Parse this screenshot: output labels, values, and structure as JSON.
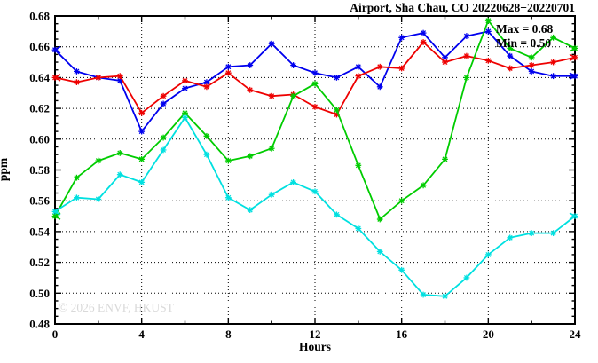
{
  "title": "Airport, Sha Chau, CO 20220628−20220701",
  "watermark": "© 2026 ENVF, HKUST",
  "chart_data": {
    "type": "line",
    "title": "Airport, Sha Chau, CO 20220628−20220701",
    "xlabel": "Hours",
    "ylabel": "ppm",
    "xlim": [
      0,
      24
    ],
    "ylim": [
      0.48,
      0.68
    ],
    "x_major_tick_step": 4,
    "x_minor_tick_step": 2,
    "y_major_tick_step": 0.02,
    "y_minor_tick_step": 0.005,
    "grid": true,
    "legend_position": "none",
    "annotations": [
      "Max = 0.68",
      "Min = 0.50"
    ],
    "x": [
      0,
      1,
      2,
      3,
      4,
      5,
      6,
      7,
      8,
      9,
      10,
      11,
      12,
      13,
      14,
      15,
      16,
      17,
      18,
      19,
      20,
      21,
      22,
      23,
      24
    ],
    "series": [
      {
        "name": "blue-line",
        "color": "#0000ee",
        "values": [
          0.658,
          0.644,
          0.64,
          0.638,
          0.605,
          0.623,
          0.633,
          0.637,
          0.647,
          0.648,
          0.662,
          0.648,
          0.643,
          0.64,
          0.647,
          0.634,
          0.666,
          0.669,
          0.653,
          0.667,
          0.67,
          0.654,
          0.644,
          0.641,
          0.641
        ]
      },
      {
        "name": "red-line",
        "color": "#ee0000",
        "values": [
          0.64,
          0.637,
          0.64,
          0.641,
          0.617,
          0.628,
          0.638,
          0.634,
          0.643,
          0.632,
          0.628,
          0.629,
          0.621,
          0.616,
          0.641,
          0.647,
          0.646,
          0.663,
          0.65,
          0.654,
          0.651,
          0.646,
          0.648,
          0.65,
          0.653
        ]
      },
      {
        "name": "green-line",
        "color": "#00cc00",
        "values": [
          0.55,
          0.575,
          0.586,
          0.591,
          0.587,
          0.601,
          0.617,
          0.602,
          0.586,
          0.589,
          0.594,
          0.628,
          0.636,
          0.619,
          0.583,
          0.548,
          0.56,
          0.57,
          0.587,
          0.64,
          0.677,
          0.659,
          0.653,
          0.666,
          0.659
        ]
      },
      {
        "name": "cyan-line",
        "color": "#00e0e0",
        "values": [
          0.553,
          0.562,
          0.561,
          0.577,
          0.572,
          0.593,
          0.614,
          0.59,
          0.562,
          0.554,
          0.564,
          0.572,
          0.566,
          0.551,
          0.542,
          0.527,
          0.515,
          0.499,
          0.498,
          0.51,
          0.525,
          0.536,
          0.539,
          0.539,
          0.55
        ]
      }
    ]
  }
}
